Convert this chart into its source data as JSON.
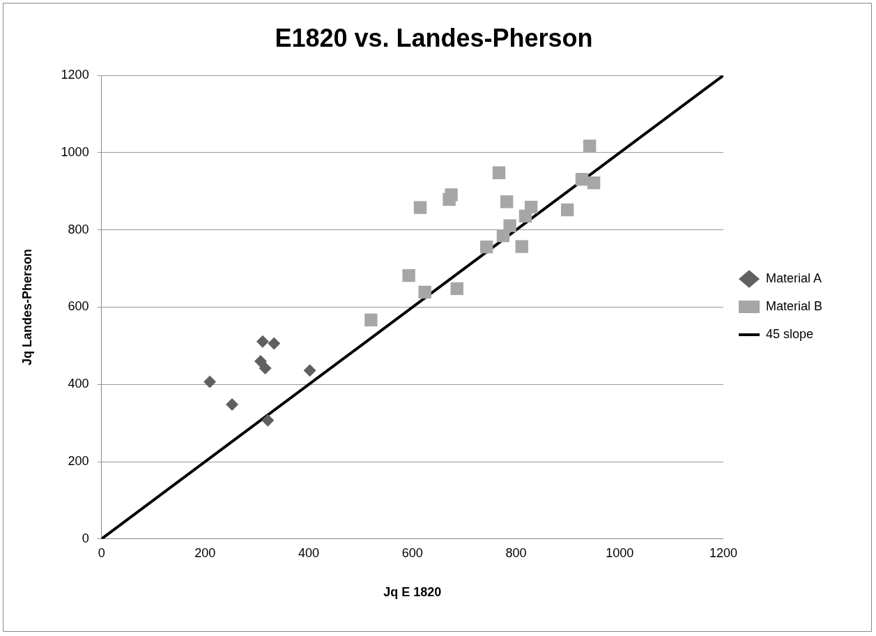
{
  "chart_data": {
    "type": "scatter",
    "title": "E1820 vs. Landes-Pherson",
    "xlabel": "Jq E 1820",
    "ylabel": "Jq Landes-Pherson",
    "xlim": [
      0,
      1200
    ],
    "xticks": [
      0,
      200,
      400,
      600,
      800,
      1000,
      1200
    ],
    "ylim": [
      0,
      1200
    ],
    "yticks": [
      0,
      200,
      400,
      600,
      800,
      1000,
      1200
    ],
    "grid": "y",
    "legend": "right",
    "series": [
      {
        "name": "Material A",
        "marker": "diamond",
        "color": "#606060",
        "x": [
          209,
          252,
          307,
          311,
          316,
          321,
          333,
          402
        ],
        "values": [
          407,
          348,
          460,
          511,
          442,
          307,
          506,
          436
        ]
      },
      {
        "name": "Material B",
        "marker": "square",
        "color": "#a6a6a6",
        "x": [
          520,
          593,
          624,
          686,
          615,
          671,
          675,
          767,
          743,
          775,
          788,
          782,
          818,
          829,
          811,
          899,
          927,
          950,
          942
        ],
        "values": [
          567,
          682,
          639,
          648,
          858,
          879,
          891,
          948,
          756,
          785,
          811,
          873,
          836,
          859,
          757,
          852,
          931,
          922,
          1017
        ]
      },
      {
        "name": "45 slope",
        "type": "line",
        "marker": "none",
        "line_style": "solid",
        "color": "#000000",
        "x": [
          0,
          1200
        ],
        "values": [
          0,
          1200
        ]
      }
    ]
  }
}
